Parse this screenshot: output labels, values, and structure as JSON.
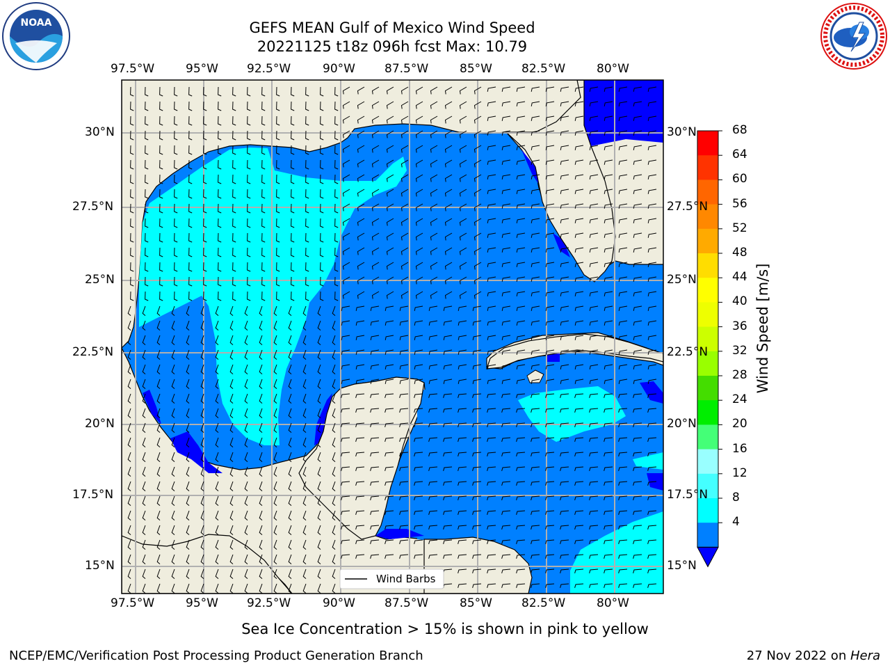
{
  "header": {
    "title_line1": "GEFS MEAN Gulf of Mexico Wind Speed",
    "title_line2": "20221125 t18z 096h fcst   Max: 10.79"
  },
  "logos": {
    "noaa_text": "NOAA",
    "noaa_ring_text": "NATIONAL OCEANIC AND ATMOSPHERIC ADMINISTRATION · U.S. DEPARTMENT OF COMMERCE",
    "nws_ring_text": "NATIONAL WEATHER SERVICE"
  },
  "map": {
    "lon_labels": [
      "97.5°W",
      "95°W",
      "92.5°W",
      "90°W",
      "87.5°W",
      "85°W",
      "82.5°W",
      "80°W"
    ],
    "lat_labels": [
      "30°N",
      "27.5°N",
      "25°N",
      "22.5°N",
      "20°N",
      "17.5°N",
      "15°N"
    ],
    "lat_labels_right": [
      "30°N",
      "27.5°N",
      "25°N",
      "22.5°N",
      "20°N",
      "17.5°N",
      "15°N"
    ],
    "legend_label": "Wind Barbs",
    "colors": {
      "land": "#efedde",
      "ocean_4_8": "#0080ff",
      "ocean_0_4": "#0000ff",
      "ocean_8_12": "#00ffff",
      "grid": "#b0b0b0"
    }
  },
  "colorbar": {
    "label": "Wind Speed [m/s]",
    "ticks": [
      "68",
      "64",
      "60",
      "56",
      "52",
      "48",
      "44",
      "40",
      "36",
      "32",
      "28",
      "24",
      "20",
      "16",
      "12",
      "8",
      "4"
    ],
    "colors": [
      "#ff0000",
      "#ff3300",
      "#ff6600",
      "#ff8800",
      "#ffaa00",
      "#ffdd00",
      "#ffff00",
      "#eeff00",
      "#ccff00",
      "#99ff00",
      "#44dd00",
      "#00ee00",
      "#44ff77",
      "#99ffff",
      "#44ffff",
      "#00ffff",
      "#0080ff"
    ],
    "under_color": "#0000ff"
  },
  "note": "Sea Ice Concentration > 15% is shown in pink to yellow",
  "footer": {
    "left": "NCEP/EMC/Verification Post Processing Product Generation Branch",
    "right_prefix": "27 Nov 2022 on ",
    "right_machine": "Hera"
  }
}
